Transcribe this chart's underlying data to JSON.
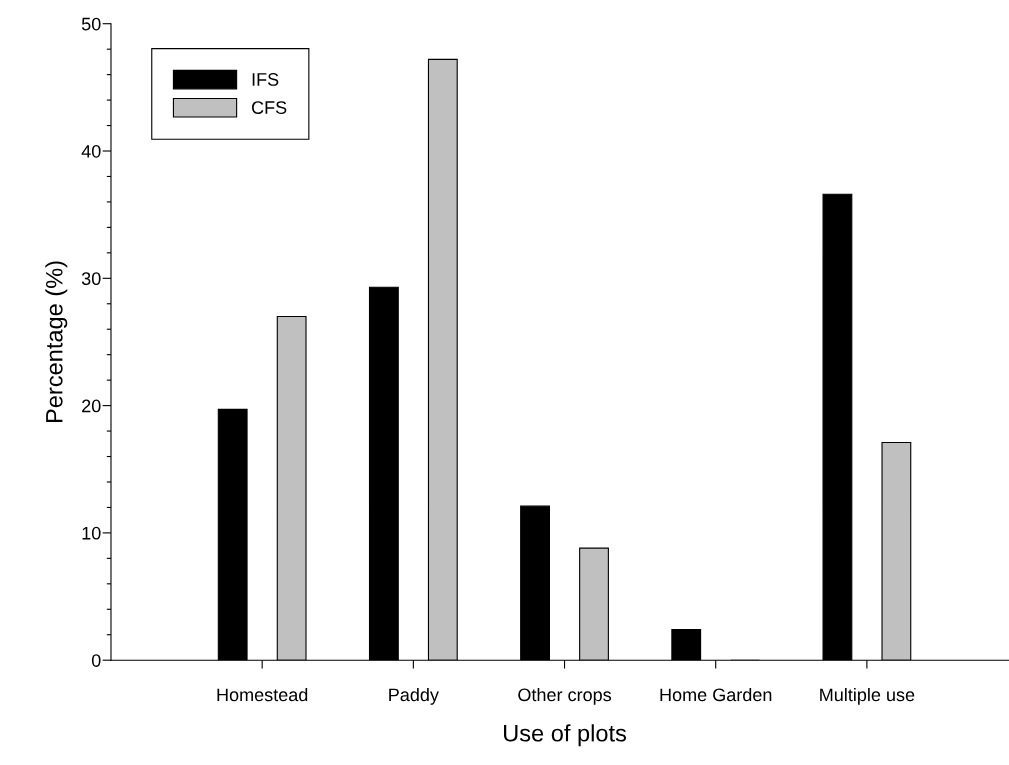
{
  "chart_data": {
    "type": "bar",
    "xlabel": "Use of plots",
    "ylabel": "Percentage (%)",
    "categories": [
      "Homestead",
      "Paddy",
      "Other crops",
      "Home Garden",
      "Multiple use"
    ],
    "series": [
      {
        "name": "IFS",
        "color": "#000000",
        "values": [
          19.7,
          29.3,
          12.1,
          2.4,
          36.6
        ]
      },
      {
        "name": "CFS",
        "color": "#c0c0c0",
        "values": [
          27.0,
          47.2,
          8.8,
          0,
          17.1
        ]
      }
    ],
    "ylim": [
      0,
      50
    ],
    "yticks": [
      0,
      {
        "value": 2,
        "label": null
      },
      {
        "value": 4,
        "label": null
      },
      {
        "value": 6,
        "label": null
      },
      {
        "value": 8,
        "label": null
      },
      10,
      {
        "value": 12,
        "label": null
      },
      {
        "value": 14,
        "label": null
      },
      {
        "value": 16,
        "label": null
      },
      {
        "value": 18,
        "label": null
      },
      20,
      {
        "value": 22,
        "label": null
      },
      {
        "value": 24,
        "label": null
      },
      {
        "value": 26,
        "label": null
      },
      {
        "value": 28,
        "label": null
      },
      30,
      {
        "value": 32,
        "label": null
      },
      {
        "value": 34,
        "label": null
      },
      {
        "value": 36,
        "label": null
      },
      {
        "value": 38,
        "label": null
      },
      40,
      {
        "value": 42,
        "label": null
      },
      {
        "value": 44,
        "label": null
      },
      {
        "value": 46,
        "label": null
      },
      {
        "value": 48,
        "label": null
      },
      50
    ],
    "legend": "top left",
    "grid": false
  }
}
